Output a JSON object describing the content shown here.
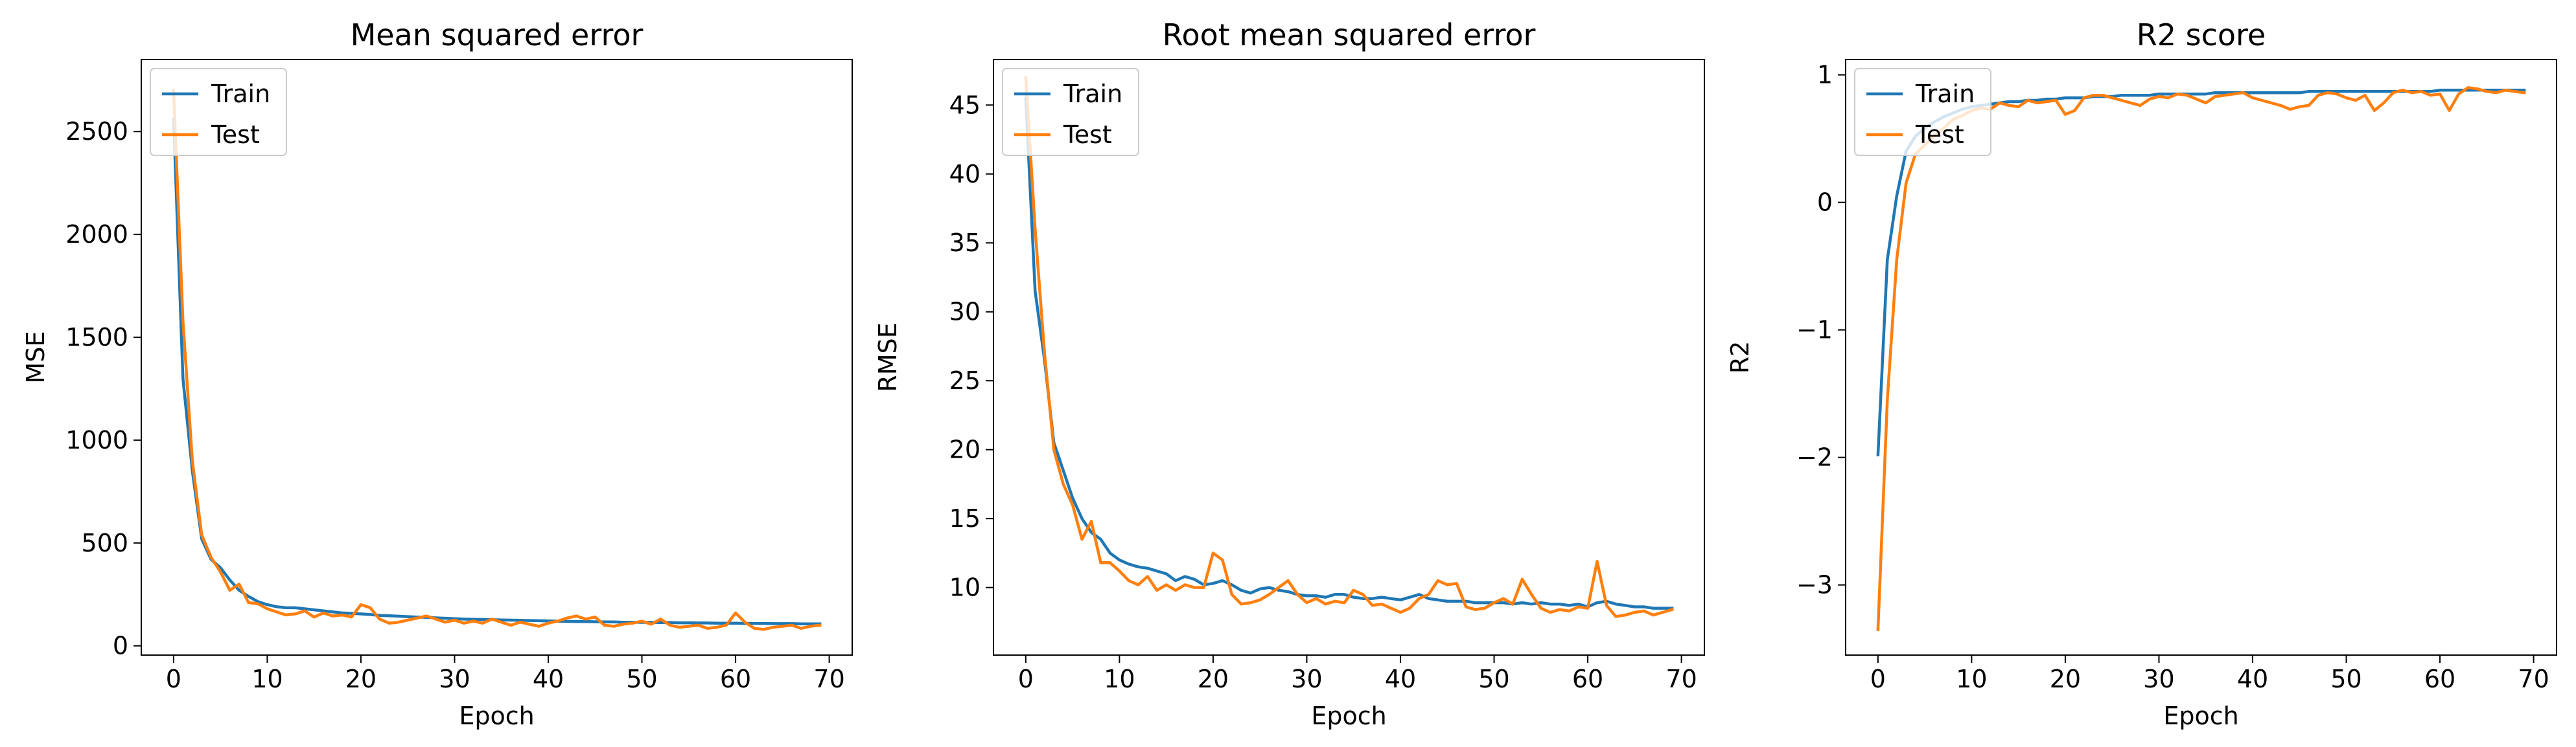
{
  "colors": {
    "train": "#1f77b4",
    "test": "#ff7f0e"
  },
  "chart_data": [
    {
      "type": "line",
      "title": "Mean squared error",
      "xlabel": "Epoch",
      "ylabel": "MSE",
      "xlim": [
        -3.45,
        72.45
      ],
      "ylim": [
        -45,
        2850
      ],
      "xticks": [
        0,
        10,
        20,
        30,
        40,
        50,
        60,
        70
      ],
      "yticks": [
        0,
        500,
        1000,
        1500,
        2000,
        2500
      ],
      "legend": "top-left",
      "grid": false,
      "series": [
        {
          "name": "Train",
          "color": "#1f77b4",
          "values": [
            2560,
            1300,
            850,
            520,
            420,
            380,
            320,
            270,
            240,
            215,
            200,
            190,
            185,
            185,
            180,
            175,
            170,
            165,
            160,
            158,
            155,
            152,
            148,
            146,
            144,
            142,
            140,
            138,
            136,
            134,
            132,
            130,
            129,
            128,
            127,
            126,
            125,
            124,
            123,
            122,
            121,
            120,
            119,
            118,
            118,
            117,
            116,
            116,
            115,
            115,
            114,
            114,
            113,
            113,
            112,
            112,
            111,
            111,
            110,
            110,
            110,
            109,
            109,
            109,
            108,
            108,
            108,
            107,
            107,
            107
          ]
        },
        {
          "name": "Test",
          "color": "#ff7f0e",
          "values": [
            2700,
            1580,
            900,
            540,
            430,
            360,
            270,
            300,
            210,
            205,
            180,
            165,
            150,
            155,
            170,
            140,
            160,
            145,
            150,
            140,
            200,
            185,
            130,
            110,
            115,
            125,
            135,
            145,
            130,
            115,
            125,
            110,
            120,
            110,
            130,
            115,
            100,
            115,
            105,
            95,
            110,
            120,
            135,
            145,
            130,
            140,
            100,
            95,
            105,
            110,
            120,
            105,
            130,
            100,
            90,
            95,
            100,
            85,
            90,
            100,
            160,
            115,
            85,
            80,
            90,
            95,
            100,
            85,
            95,
            100
          ]
        }
      ]
    },
    {
      "type": "line",
      "title": "Root mean squared error",
      "xlabel": "Epoch",
      "ylabel": "RMSE",
      "xlim": [
        -3.45,
        72.45
      ],
      "ylim": [
        5.1,
        48.3
      ],
      "xticks": [
        0,
        10,
        20,
        30,
        40,
        50,
        60,
        70
      ],
      "yticks": [
        10,
        15,
        20,
        25,
        30,
        35,
        40,
        45
      ],
      "legend": "top-left",
      "grid": false,
      "series": [
        {
          "name": "Train",
          "color": "#1f77b4",
          "values": [
            45.5,
            31.5,
            26.5,
            20.5,
            18.5,
            16.5,
            15.0,
            14.0,
            13.5,
            12.5,
            12.0,
            11.7,
            11.5,
            11.4,
            11.2,
            11.0,
            10.5,
            10.8,
            10.6,
            10.2,
            10.3,
            10.5,
            10.2,
            9.8,
            9.6,
            9.9,
            10.0,
            9.8,
            9.7,
            9.5,
            9.4,
            9.4,
            9.3,
            9.5,
            9.5,
            9.3,
            9.2,
            9.2,
            9.3,
            9.2,
            9.1,
            9.3,
            9.5,
            9.2,
            9.1,
            9.0,
            9.0,
            9.0,
            8.9,
            8.9,
            8.9,
            8.9,
            8.8,
            8.9,
            8.8,
            8.9,
            8.8,
            8.8,
            8.7,
            8.8,
            8.6,
            8.9,
            9.0,
            8.8,
            8.7,
            8.6,
            8.6,
            8.5,
            8.5,
            8.5
          ]
        },
        {
          "name": "Test",
          "color": "#ff7f0e",
          "values": [
            47.0,
            36.0,
            27.0,
            20.0,
            17.5,
            16.0,
            13.5,
            14.8,
            11.8,
            11.8,
            11.2,
            10.5,
            10.2,
            10.8,
            9.8,
            10.2,
            9.8,
            10.2,
            10.0,
            10.0,
            12.5,
            12.0,
            9.5,
            8.8,
            8.9,
            9.1,
            9.5,
            10.0,
            10.5,
            9.5,
            8.9,
            9.2,
            8.8,
            9.0,
            8.9,
            9.8,
            9.5,
            8.7,
            8.8,
            8.5,
            8.2,
            8.5,
            9.2,
            9.5,
            10.5,
            10.2,
            10.3,
            8.6,
            8.4,
            8.5,
            8.9,
            9.2,
            8.8,
            10.6,
            9.5,
            8.5,
            8.2,
            8.4,
            8.3,
            8.6,
            8.5,
            11.9,
            8.7,
            7.9,
            8.0,
            8.2,
            8.3,
            8.0,
            8.2,
            8.4
          ]
        }
      ]
    },
    {
      "type": "line",
      "title": "R2 score",
      "xlabel": "Epoch",
      "ylabel": "R2",
      "xlim": [
        -3.45,
        72.45
      ],
      "ylim": [
        -3.55,
        1.12
      ],
      "xticks": [
        0,
        10,
        20,
        30,
        40,
        50,
        60,
        70
      ],
      "yticks": [
        -3,
        -2,
        -1,
        0,
        1
      ],
      "legend": "top-left",
      "grid": false,
      "series": [
        {
          "name": "Train",
          "color": "#1f77b4",
          "values": [
            -1.98,
            -0.45,
            0.05,
            0.4,
            0.52,
            0.58,
            0.63,
            0.67,
            0.7,
            0.73,
            0.75,
            0.76,
            0.77,
            0.78,
            0.79,
            0.79,
            0.8,
            0.8,
            0.81,
            0.81,
            0.82,
            0.82,
            0.82,
            0.83,
            0.83,
            0.83,
            0.84,
            0.84,
            0.84,
            0.84,
            0.85,
            0.85,
            0.85,
            0.85,
            0.85,
            0.85,
            0.86,
            0.86,
            0.86,
            0.86,
            0.86,
            0.86,
            0.86,
            0.86,
            0.86,
            0.86,
            0.87,
            0.87,
            0.87,
            0.87,
            0.87,
            0.87,
            0.87,
            0.87,
            0.87,
            0.87,
            0.87,
            0.87,
            0.87,
            0.87,
            0.88,
            0.88,
            0.88,
            0.88,
            0.88,
            0.88,
            0.88,
            0.88,
            0.88,
            0.88
          ]
        },
        {
          "name": "Test",
          "color": "#ff7f0e",
          "values": [
            -3.35,
            -1.55,
            -0.45,
            0.15,
            0.38,
            0.45,
            0.52,
            0.58,
            0.65,
            0.68,
            0.72,
            0.74,
            0.73,
            0.78,
            0.76,
            0.75,
            0.8,
            0.78,
            0.79,
            0.8,
            0.69,
            0.72,
            0.82,
            0.84,
            0.84,
            0.82,
            0.8,
            0.78,
            0.76,
            0.81,
            0.83,
            0.82,
            0.85,
            0.84,
            0.81,
            0.78,
            0.83,
            0.84,
            0.85,
            0.86,
            0.82,
            0.8,
            0.78,
            0.76,
            0.73,
            0.75,
            0.76,
            0.84,
            0.86,
            0.85,
            0.82,
            0.8,
            0.84,
            0.72,
            0.78,
            0.86,
            0.88,
            0.86,
            0.87,
            0.84,
            0.85,
            0.72,
            0.85,
            0.9,
            0.89,
            0.87,
            0.86,
            0.88,
            0.87,
            0.86
          ]
        }
      ]
    }
  ]
}
